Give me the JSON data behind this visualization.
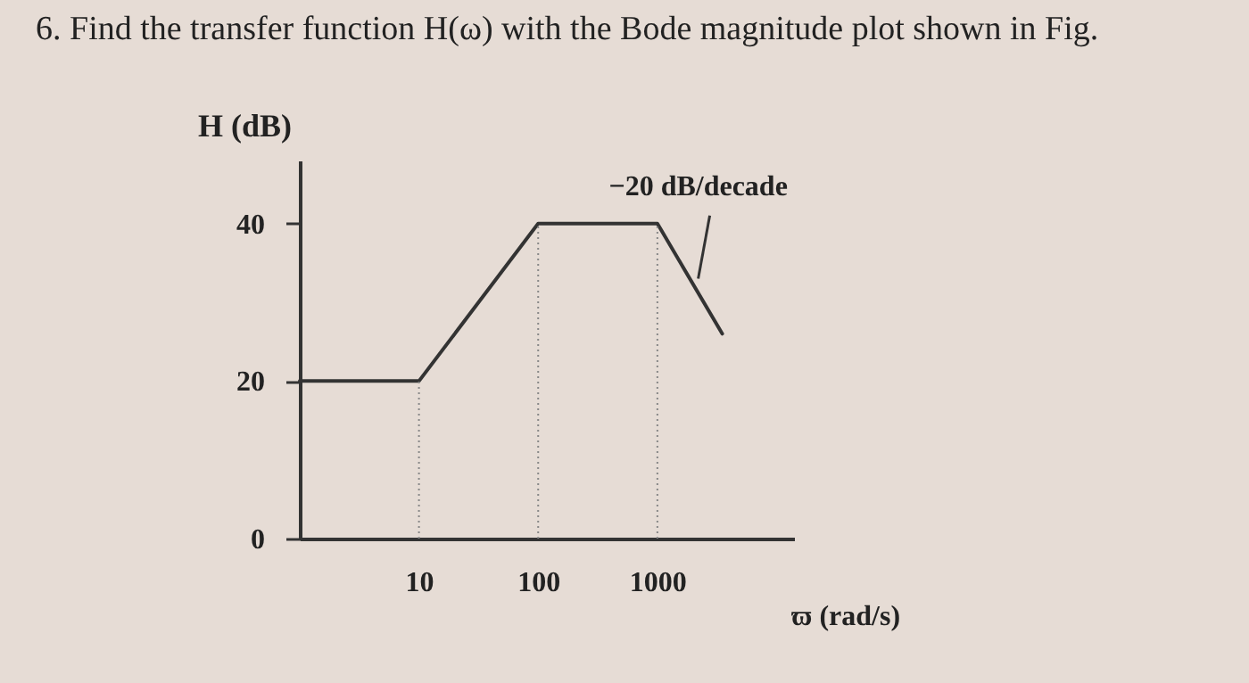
{
  "chart_data": {
    "type": "line",
    "title": "6. Find the transfer function H(ω) with the Bode magnitude plot shown in Fig.",
    "xlabel": "ϖ (rad/s)",
    "ylabel": "H (dB)",
    "x": [
      1,
      10,
      100,
      1000,
      3500
    ],
    "series": [
      {
        "color": "#333333",
        "values": [
          20,
          20,
          40,
          40,
          26
        ]
      }
    ],
    "log": "x",
    "xlim": [
      1,
      14000
    ],
    "xticks": [
      10,
      100,
      1000
    ],
    "ylim": [
      0,
      48
    ],
    "yticks": [
      0,
      20,
      40
    ],
    "grid": false,
    "marker": "none",
    "line_style": "solid",
    "ref_lines": [
      {
        "axis": "x",
        "value": 10,
        "line_style": "dotted",
        "color": "#888888"
      },
      {
        "axis": "x",
        "value": 100,
        "line_style": "dotted",
        "color": "#888888"
      },
      {
        "axis": "x",
        "value": 1000,
        "line_style": "dotted",
        "color": "#888888"
      }
    ],
    "annotations": [
      {
        "text": "−20 dB/decade",
        "x": 2200,
        "y": 33
      }
    ]
  }
}
